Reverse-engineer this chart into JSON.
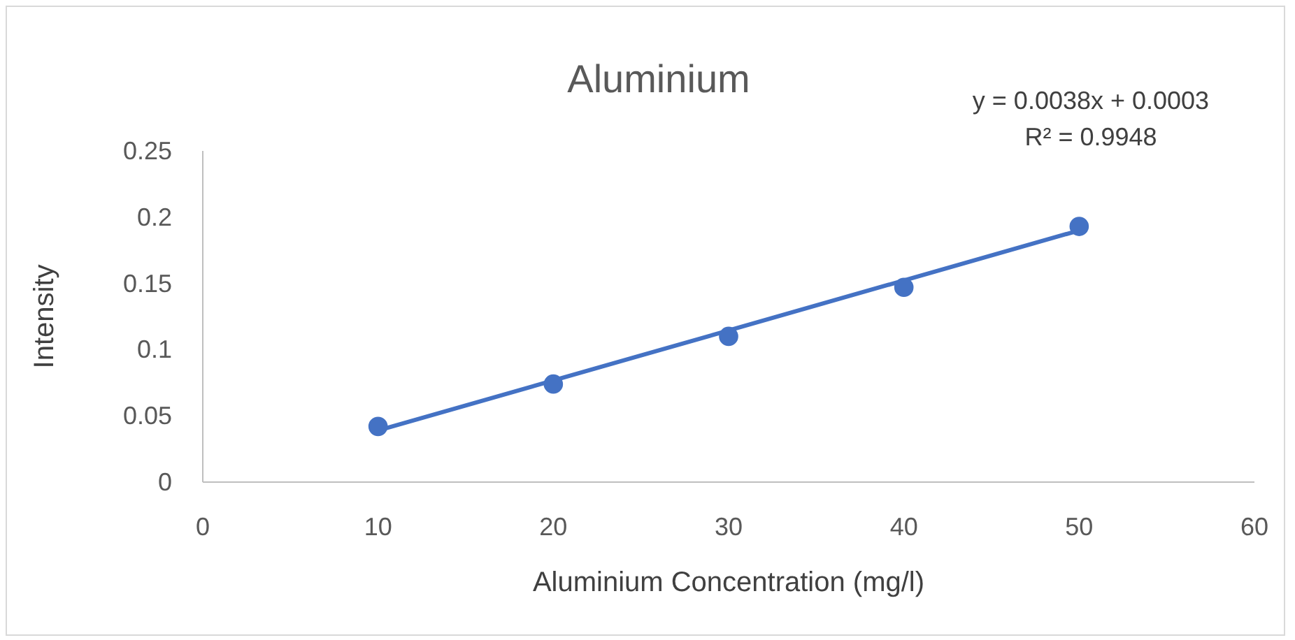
{
  "chart_data": {
    "type": "scatter",
    "title": "Aluminium",
    "xlabel": "Aluminium Concentration (mg/l)",
    "ylabel": "Intensity",
    "marker": "circle",
    "annotations": [
      "y = 0.0038x + 0.0003",
      "R² = 0.9948"
    ],
    "series": [
      {
        "type": "scatter",
        "color": "#4472c4",
        "x": [
          10,
          20,
          30,
          40,
          50
        ],
        "values": [
          0.042,
          0.074,
          0.11,
          0.147,
          0.193
        ]
      },
      {
        "type": "line",
        "color": "#4472c4",
        "marker": "none",
        "line_style": "solid",
        "x": [
          10,
          50
        ],
        "values": [
          0.039,
          0.19
        ]
      }
    ],
    "xlim": [
      0,
      60
    ],
    "xticks": [
      0,
      10,
      20,
      30,
      40,
      50,
      60
    ],
    "ylim": [
      0,
      0.25
    ],
    "yticks": [
      0,
      0.05,
      0.1,
      0.15,
      0.2,
      0.25
    ],
    "grid": false,
    "legend": false
  }
}
